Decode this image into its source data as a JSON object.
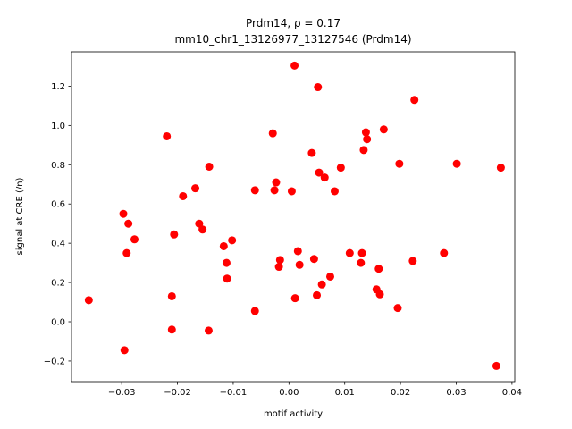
{
  "chart_data": {
    "type": "scatter",
    "title_line1": "Prdm14, ρ = 0.17",
    "title_line2": "mm10_chr1_13126977_13127546 (Prdm14)",
    "xlabel": "motif activity",
    "ylabel": "signal at CRE (/n)",
    "xlim": [
      -0.039,
      0.0405
    ],
    "ylim": [
      -0.305,
      1.375
    ],
    "xticks": [
      -0.03,
      -0.02,
      -0.01,
      0.0,
      0.01,
      0.02,
      0.03,
      0.04
    ],
    "xtick_labels": [
      "−0.03",
      "−0.02",
      "−0.01",
      "0.00",
      "0.01",
      "0.02",
      "0.03",
      "0.04"
    ],
    "yticks": [
      -0.2,
      0.0,
      0.2,
      0.4,
      0.6,
      0.8,
      1.0,
      1.2
    ],
    "ytick_labels": [
      "−0.2",
      "0.0",
      "0.2",
      "0.4",
      "0.6",
      "0.8",
      "1.0",
      "1.2"
    ],
    "grid": false,
    "marker_color": "#ff0000",
    "points": [
      {
        "x": -0.0359,
        "y": 0.11
      },
      {
        "x": -0.0297,
        "y": 0.55
      },
      {
        "x": -0.0295,
        "y": -0.145
      },
      {
        "x": -0.0291,
        "y": 0.35
      },
      {
        "x": -0.0288,
        "y": 0.5
      },
      {
        "x": -0.0277,
        "y": 0.42
      },
      {
        "x": -0.0219,
        "y": 0.945
      },
      {
        "x": -0.021,
        "y": 0.13
      },
      {
        "x": -0.021,
        "y": -0.04
      },
      {
        "x": -0.0206,
        "y": 0.445
      },
      {
        "x": -0.019,
        "y": 0.64
      },
      {
        "x": -0.0168,
        "y": 0.68
      },
      {
        "x": -0.0161,
        "y": 0.5
      },
      {
        "x": -0.0155,
        "y": 0.47
      },
      {
        "x": -0.0143,
        "y": 0.79
      },
      {
        "x": -0.0144,
        "y": -0.045
      },
      {
        "x": -0.0117,
        "y": 0.385
      },
      {
        "x": -0.0112,
        "y": 0.3
      },
      {
        "x": -0.0111,
        "y": 0.22
      },
      {
        "x": -0.0102,
        "y": 0.415
      },
      {
        "x": -0.0061,
        "y": 0.67
      },
      {
        "x": -0.0061,
        "y": 0.055
      },
      {
        "x": -0.0029,
        "y": 0.96
      },
      {
        "x": -0.0026,
        "y": 0.67
      },
      {
        "x": -0.0023,
        "y": 0.71
      },
      {
        "x": -0.0018,
        "y": 0.28
      },
      {
        "x": -0.0016,
        "y": 0.315
      },
      {
        "x": 0.0005,
        "y": 0.665
      },
      {
        "x": 0.001,
        "y": 1.305
      },
      {
        "x": 0.0011,
        "y": 0.12
      },
      {
        "x": 0.0016,
        "y": 0.36
      },
      {
        "x": 0.0019,
        "y": 0.29
      },
      {
        "x": 0.0041,
        "y": 0.86
      },
      {
        "x": 0.0045,
        "y": 0.32
      },
      {
        "x": 0.005,
        "y": 0.135
      },
      {
        "x": 0.0052,
        "y": 1.195
      },
      {
        "x": 0.0054,
        "y": 0.76
      },
      {
        "x": 0.0059,
        "y": 0.19
      },
      {
        "x": 0.0064,
        "y": 0.735
      },
      {
        "x": 0.0074,
        "y": 0.23
      },
      {
        "x": 0.0082,
        "y": 0.665
      },
      {
        "x": 0.0093,
        "y": 0.785
      },
      {
        "x": 0.0109,
        "y": 0.35
      },
      {
        "x": 0.0129,
        "y": 0.3
      },
      {
        "x": 0.0131,
        "y": 0.35
      },
      {
        "x": 0.0134,
        "y": 0.875
      },
      {
        "x": 0.0138,
        "y": 0.965
      },
      {
        "x": 0.014,
        "y": 0.93
      },
      {
        "x": 0.0157,
        "y": 0.165
      },
      {
        "x": 0.0161,
        "y": 0.27
      },
      {
        "x": 0.0163,
        "y": 0.14
      },
      {
        "x": 0.017,
        "y": 0.98
      },
      {
        "x": 0.0195,
        "y": 0.07
      },
      {
        "x": 0.0198,
        "y": 0.805
      },
      {
        "x": 0.0222,
        "y": 0.31
      },
      {
        "x": 0.0225,
        "y": 1.13
      },
      {
        "x": 0.0278,
        "y": 0.35
      },
      {
        "x": 0.0301,
        "y": 0.805
      },
      {
        "x": 0.0372,
        "y": -0.225
      },
      {
        "x": 0.038,
        "y": 0.785
      }
    ]
  }
}
